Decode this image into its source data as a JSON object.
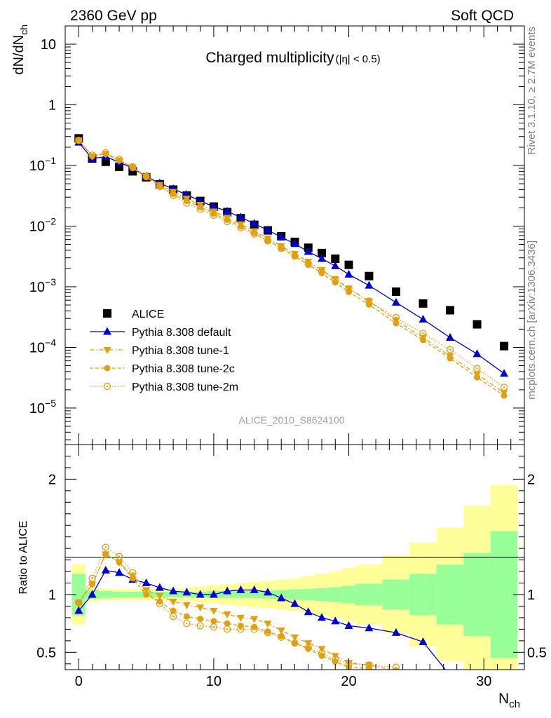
{
  "header": {
    "left": "2360 GeV pp",
    "right": "Soft QCD",
    "side_top": "Rivet 3.1.10, ≥ 2.7M events",
    "side_bottom": "mcplots.cern.ch [arXiv:1306.3436]",
    "analysis_id": "ALICE_2010_S8624100"
  },
  "colors": {
    "alice": "#000000",
    "default": "#0000cc",
    "tunes": "#e0a010",
    "band_inner": "#99ff99",
    "band_outer": "#ffff99"
  },
  "chart_data": [
    {
      "type": "scatter",
      "panel": "main",
      "title": "Charged multiplicity",
      "title_cut": "(|η| < 0.5)",
      "ylabel": "dN/dN",
      "ylabel_sub": "ch",
      "yscale": "log",
      "xlim": [
        -1,
        33
      ],
      "ylim": [
        2.5e-06,
        20
      ],
      "y_ticks": [
        {
          "label": "10",
          "value": 10
        },
        {
          "label": "1",
          "value": 1
        },
        {
          "label": "10",
          "exp": "−1",
          "value": 0.1
        },
        {
          "label": "10",
          "exp": "−2",
          "value": 0.01
        },
        {
          "label": "10",
          "exp": "−3",
          "value": 0.001
        },
        {
          "label": "10",
          "exp": "−4",
          "value": 0.0001
        },
        {
          "label": "10",
          "exp": "−5",
          "value": 1e-05
        }
      ],
      "legend_position": "bottom-left",
      "series": [
        {
          "name": "ALICE",
          "marker": "square",
          "x": [
            0,
            1,
            2,
            3,
            4,
            5,
            6,
            7,
            8,
            9,
            10,
            11,
            12,
            13,
            14,
            15,
            16,
            17,
            18,
            19,
            20,
            21.5,
            23.5,
            25.5,
            27.5,
            29.5,
            31.5
          ],
          "values": [
            0.28,
            0.13,
            0.115,
            0.095,
            0.08,
            0.064,
            0.049,
            0.04,
            0.032,
            0.026,
            0.021,
            0.017,
            0.0135,
            0.0105,
            0.0085,
            0.0068,
            0.0055,
            0.0044,
            0.0036,
            0.0029,
            0.0023,
            0.0015,
            0.00083,
            0.00053,
            0.00041,
            0.00024,
            0.000105
          ]
        },
        {
          "name": "Pythia 8.308 default",
          "marker": "triangle-up",
          "line": "solid",
          "x": [
            0,
            1,
            2,
            3,
            4,
            5,
            6,
            7,
            8,
            9,
            10,
            11,
            12,
            13,
            14,
            15,
            16,
            17,
            18,
            19,
            20,
            21.5,
            23.5,
            25.5,
            27.5,
            29.5,
            31.5
          ],
          "values": [
            0.24,
            0.13,
            0.14,
            0.113,
            0.09,
            0.066,
            0.051,
            0.041,
            0.033,
            0.026,
            0.021,
            0.0175,
            0.014,
            0.011,
            0.0086,
            0.0066,
            0.0051,
            0.0038,
            0.0029,
            0.0022,
            0.0016,
            0.00105,
            0.00055,
            0.00029,
            0.000145,
            7.8e-05,
            3.7e-05
          ]
        },
        {
          "name": "Pythia 8.308 tune-1",
          "marker": "triangle-down",
          "line": "dash-dot",
          "x": [
            0,
            1,
            2,
            3,
            4,
            5,
            6,
            7,
            8,
            9,
            10,
            11,
            12,
            13,
            14,
            15,
            16,
            17,
            18,
            19,
            20,
            21.5,
            23.5,
            25.5,
            27.5,
            29.5,
            31.5
          ],
          "values": [
            0.26,
            0.142,
            0.155,
            0.121,
            0.093,
            0.066,
            0.048,
            0.037,
            0.0285,
            0.0225,
            0.0175,
            0.0138,
            0.0108,
            0.0083,
            0.0063,
            0.0047,
            0.0035,
            0.0026,
            0.0019,
            0.00135,
            0.00094,
            0.00058,
            0.00028,
            0.000145,
            7.2e-05,
            3.6e-05,
            1.8e-05
          ]
        },
        {
          "name": "Pythia 8.308 tune-2c",
          "marker": "circle",
          "line": "dashed",
          "x": [
            0,
            1,
            2,
            3,
            4,
            5,
            6,
            7,
            8,
            9,
            10,
            11,
            12,
            13,
            14,
            15,
            16,
            17,
            18,
            19,
            20,
            21.5,
            23.5,
            25.5,
            27.5,
            29.5,
            31.5
          ],
          "values": [
            0.26,
            0.142,
            0.155,
            0.121,
            0.091,
            0.064,
            0.046,
            0.034,
            0.026,
            0.0205,
            0.0161,
            0.0127,
            0.0099,
            0.0077,
            0.0058,
            0.0044,
            0.0032,
            0.0023,
            0.00168,
            0.00118,
            0.00082,
            0.00051,
            0.00025,
            0.000132,
            6.6e-05,
            3.2e-05,
            1.6e-05
          ]
        },
        {
          "name": "Pythia 8.308 tune-2m",
          "marker": "circle-open",
          "line": "dotted",
          "x": [
            0,
            1,
            2,
            3,
            4,
            5,
            6,
            7,
            8,
            9,
            10,
            11,
            12,
            13,
            14,
            15,
            16,
            17,
            18,
            19,
            20,
            21.5,
            23.5,
            25.5,
            27.5,
            29.5,
            31.5
          ],
          "values": [
            0.26,
            0.148,
            0.162,
            0.126,
            0.095,
            0.066,
            0.045,
            0.032,
            0.024,
            0.019,
            0.0151,
            0.0119,
            0.0094,
            0.0074,
            0.0057,
            0.0043,
            0.0032,
            0.0024,
            0.0018,
            0.0013,
            0.00092,
            0.00058,
            0.00031,
            0.00017,
            9.2e-05,
            4.5e-05,
            2.2e-05
          ]
        }
      ]
    },
    {
      "type": "line",
      "panel": "ratio",
      "ylabel": "Ratio to ALICE",
      "xlabel": "N",
      "xlabel_sub": "ch",
      "xlim": [
        -1,
        33
      ],
      "ylim": [
        0.35,
        2.3
      ],
      "x_ticks": [
        {
          "label": "0",
          "value": 0
        },
        {
          "label": "10",
          "value": 10
        },
        {
          "label": "20",
          "value": 20
        },
        {
          "label": "30",
          "value": 30
        }
      ],
      "y_ticks": [
        {
          "label": "0.5",
          "value": 0.5
        },
        {
          "label": "1",
          "value": 1
        },
        {
          "label": "2",
          "value": 2
        }
      ],
      "bands": {
        "edges": [
          -0.5,
          0.5,
          1.5,
          2.5,
          3.5,
          4.5,
          5.5,
          6.5,
          7.5,
          8.5,
          9.5,
          10.5,
          11.5,
          12.5,
          13.5,
          14.5,
          15.5,
          16.5,
          17.5,
          18.5,
          19.5,
          20.5,
          22.5,
          24.5,
          26.5,
          28.5,
          30.5,
          32.5
        ],
        "inner": [
          0.18,
          0.04,
          0.03,
          0.025,
          0.025,
          0.025,
          0.025,
          0.025,
          0.025,
          0.025,
          0.03,
          0.03,
          0.03,
          0.03,
          0.035,
          0.04,
          0.045,
          0.05,
          0.055,
          0.065,
          0.075,
          0.095,
          0.13,
          0.18,
          0.26,
          0.36,
          0.55
        ],
        "outer": [
          0.26,
          0.06,
          0.05,
          0.05,
          0.05,
          0.05,
          0.05,
          0.05,
          0.06,
          0.07,
          0.08,
          0.09,
          0.1,
          0.11,
          0.12,
          0.13,
          0.14,
          0.16,
          0.18,
          0.2,
          0.23,
          0.26,
          0.34,
          0.45,
          0.58,
          0.77,
          0.95
        ]
      },
      "series": [
        {
          "name": "Pythia 8.308 default",
          "x": [
            0,
            1,
            2,
            3,
            4,
            5,
            6,
            7,
            8,
            9,
            10,
            11,
            12,
            13,
            14,
            15,
            16,
            17,
            18,
            19,
            20,
            21.5,
            23.5,
            25.5,
            27.5
          ],
          "values": [
            0.86,
            1.0,
            1.21,
            1.19,
            1.13,
            1.1,
            1.06,
            1.03,
            1.02,
            1.0,
            1.0,
            1.03,
            1.04,
            1.04,
            1.02,
            0.97,
            0.92,
            0.85,
            0.8,
            0.77,
            0.73,
            0.71,
            0.67,
            0.59,
            0.3
          ]
        },
        {
          "name": "Pythia 8.308 tune-1",
          "x": [
            0,
            1,
            2,
            3,
            4,
            5,
            6,
            7,
            8,
            9,
            10,
            11,
            12,
            13,
            14,
            15,
            16,
            17,
            18,
            19,
            20,
            21.5,
            23.5
          ],
          "values": [
            0.93,
            1.09,
            1.35,
            1.28,
            1.16,
            1.04,
            0.99,
            0.94,
            0.91,
            0.89,
            0.86,
            0.83,
            0.8,
            0.79,
            0.75,
            0.69,
            0.63,
            0.58,
            0.53,
            0.47,
            0.41,
            0.39,
            0.34
          ]
        },
        {
          "name": "Pythia 8.308 tune-2c",
          "x": [
            0,
            1,
            2,
            3,
            4,
            5,
            6,
            7,
            8,
            9,
            10,
            11,
            12,
            13,
            14,
            15,
            16,
            17,
            18,
            19,
            20,
            21.5,
            23.5
          ],
          "values": [
            0.93,
            1.09,
            1.35,
            1.28,
            1.14,
            1.0,
            0.94,
            0.86,
            0.81,
            0.79,
            0.77,
            0.75,
            0.73,
            0.72,
            0.68,
            0.64,
            0.58,
            0.53,
            0.47,
            0.42,
            0.37,
            0.36,
            0.31
          ]
        },
        {
          "name": "Pythia 8.308 tune-2m",
          "x": [
            0,
            1,
            2,
            3,
            4,
            5,
            6,
            7,
            8,
            9,
            10,
            11,
            12,
            13,
            14,
            15,
            16,
            17,
            18,
            19,
            20,
            21.5,
            23.5
          ],
          "values": [
            0.93,
            1.14,
            1.41,
            1.33,
            1.19,
            1.03,
            0.92,
            0.81,
            0.75,
            0.73,
            0.72,
            0.7,
            0.7,
            0.7,
            0.67,
            0.63,
            0.58,
            0.54,
            0.49,
            0.44,
            0.4,
            0.39,
            0.37
          ]
        }
      ]
    }
  ]
}
